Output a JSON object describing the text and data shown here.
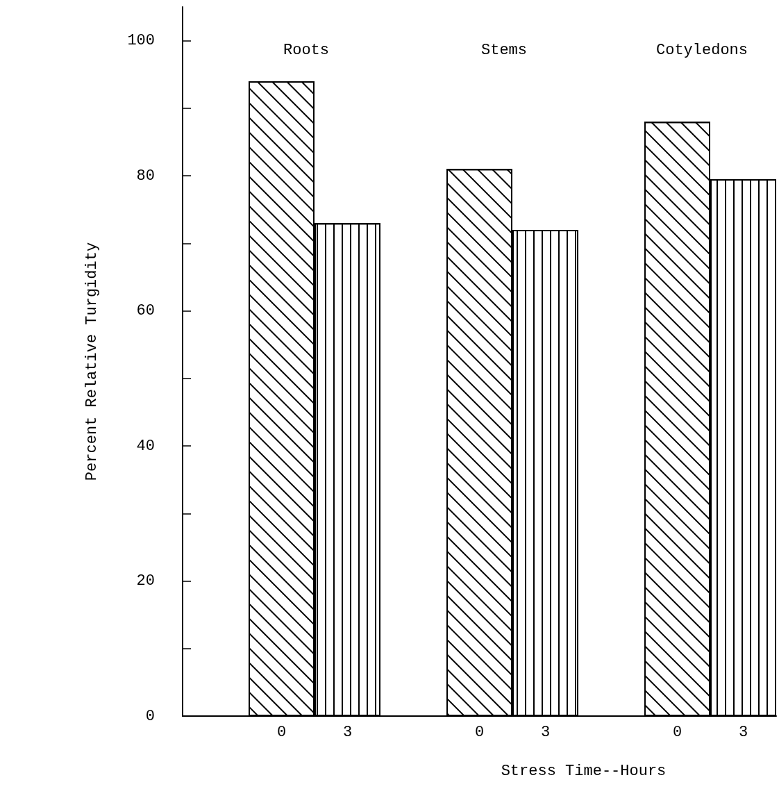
{
  "chart_data": {
    "type": "bar",
    "categories": [
      null,
      "0",
      "3",
      null,
      "0",
      "3",
      null,
      "0",
      "3"
    ],
    "values": [
      null,
      94,
      73,
      null,
      81,
      72,
      null,
      88,
      79.5
    ],
    "color": "#ffffff",
    "xlabel": "Stress Time--Hours",
    "ylabel": "Percent Relative Turgidity",
    "annotations": [
      "Roots",
      "Stems",
      "Cotyledons"
    ],
    "ylim": [
      0,
      105
    ],
    "yticks": [
      0,
      {
        "value": 10,
        "label": null
      },
      20,
      {
        "value": 30,
        "label": null
      },
      40,
      {
        "value": 50,
        "label": null
      },
      60,
      {
        "value": 70,
        "label": null
      },
      80,
      {
        "value": 90,
        "label": null
      },
      100
    ],
    "grid": false
  }
}
